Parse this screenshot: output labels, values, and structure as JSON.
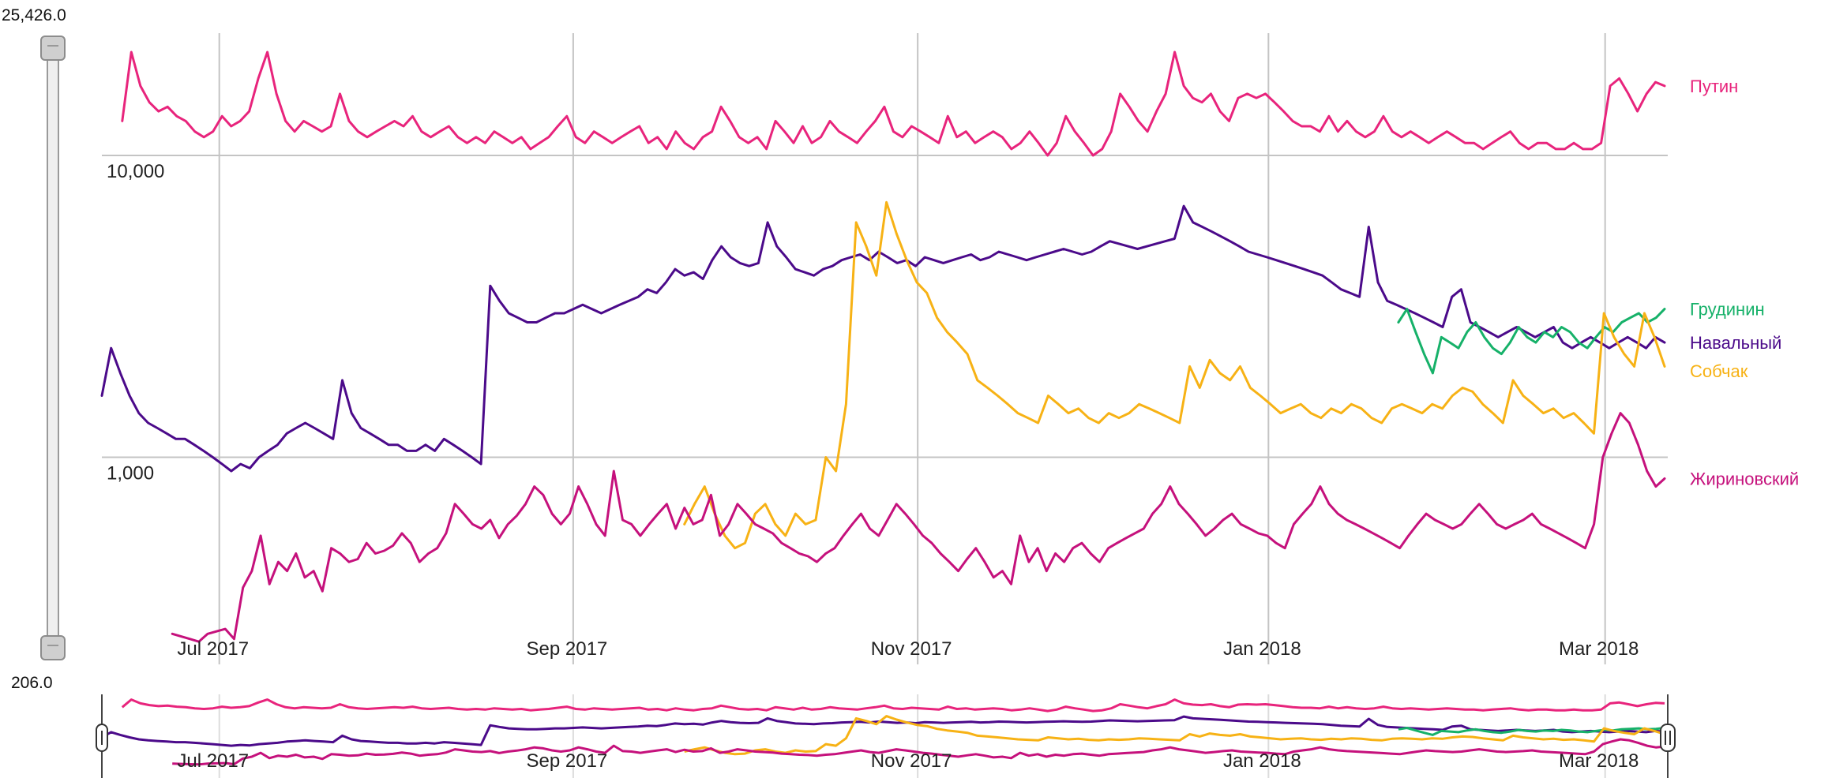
{
  "chart_data": {
    "type": "line",
    "title": "",
    "xlabel": "",
    "ylabel": "",
    "y_scale": "log",
    "ylim": [
      206,
      25426
    ],
    "grid": true,
    "x_ticks": [
      {
        "label": "Jul 2017",
        "t": 0.075
      },
      {
        "label": "Sep 2017",
        "t": 0.301
      },
      {
        "label": "Nov 2017",
        "t": 0.521
      },
      {
        "label": "Jan 2018",
        "t": 0.745
      },
      {
        "label": "Mar 2018",
        "t": 0.96
      }
    ],
    "y_ticks": [
      {
        "label": "10,000",
        "value": 10000
      },
      {
        "label": "1,000",
        "value": 1000
      }
    ],
    "range_selector": {
      "max_label": "25,426.0",
      "min_label": "206.0",
      "max_value": 25426,
      "min_value": 206
    },
    "legend_position": "right",
    "series": [
      {
        "name": "Путин",
        "color": "#e8247c",
        "t_start": 0.013,
        "t_end": 0.998,
        "values": [
          13000,
          22000,
          17000,
          15000,
          14000,
          14500,
          13500,
          13000,
          12000,
          11500,
          12000,
          13500,
          12500,
          13000,
          14000,
          18000,
          22000,
          16000,
          13000,
          12000,
          13000,
          12500,
          12000,
          12500,
          16000,
          13000,
          12000,
          11500,
          12000,
          12500,
          13000,
          12500,
          13500,
          12000,
          11500,
          12000,
          12500,
          11500,
          11000,
          11500,
          11000,
          12000,
          11500,
          11000,
          11500,
          10500,
          11000,
          11500,
          12500,
          13500,
          11500,
          11000,
          12000,
          11500,
          11000,
          11500,
          12000,
          12500,
          11000,
          11500,
          10500,
          12000,
          11000,
          10500,
          11500,
          12000,
          14500,
          13000,
          11500,
          11000,
          11500,
          10500,
          13000,
          12000,
          11000,
          12500,
          11000,
          11500,
          13000,
          12000,
          11500,
          11000,
          12000,
          13000,
          14500,
          12000,
          11500,
          12500,
          12000,
          11500,
          11000,
          13500,
          11500,
          12000,
          11000,
          11500,
          12000,
          11500,
          10500,
          11000,
          12000,
          11000,
          10000,
          11000,
          13500,
          12000,
          11000,
          10000,
          10500,
          12000,
          16000,
          14500,
          13000,
          12000,
          14000,
          16000,
          22000,
          17000,
          15500,
          15000,
          16000,
          14000,
          13000,
          15500,
          16000,
          15500,
          16000,
          15000,
          14000,
          13000,
          12500,
          12500,
          12000,
          13500,
          12000,
          13000,
          12000,
          11500,
          12000,
          13500,
          12000,
          11500,
          12000,
          11500,
          11000,
          11500,
          12000,
          11500,
          11000,
          11000,
          10500,
          11000,
          11500,
          12000,
          11000,
          10500,
          11000,
          11000,
          10500,
          10500,
          11000,
          10500,
          10500,
          11000,
          17000,
          18000,
          16000,
          14000,
          16000,
          17500,
          17000
        ]
      },
      {
        "name": "Навальный",
        "color": "#4b0a8a",
        "t_start": 0.0,
        "t_end": 0.998,
        "values": [
          1600,
          2300,
          1900,
          1600,
          1400,
          1300,
          1250,
          1200,
          1150,
          1150,
          1100,
          1050,
          1000,
          950,
          900,
          950,
          920,
          1000,
          1050,
          1100,
          1200,
          1250,
          1300,
          1250,
          1200,
          1150,
          1800,
          1400,
          1250,
          1200,
          1150,
          1100,
          1100,
          1050,
          1050,
          1100,
          1050,
          1150,
          1100,
          1050,
          1000,
          950,
          3700,
          3300,
          3000,
          2900,
          2800,
          2800,
          2900,
          3000,
          3000,
          3100,
          3200,
          3100,
          3000,
          3100,
          3200,
          3300,
          3400,
          3600,
          3500,
          3800,
          4200,
          4000,
          4100,
          3900,
          4500,
          5000,
          4600,
          4400,
          4300,
          4400,
          6000,
          5000,
          4600,
          4200,
          4100,
          4000,
          4200,
          4300,
          4500,
          4600,
          4700,
          4500,
          4800,
          4600,
          4400,
          4500,
          4300,
          4600,
          4500,
          4400,
          4500,
          4600,
          4700,
          4500,
          4600,
          4800,
          4700,
          4600,
          4500,
          4600,
          4700,
          4800,
          4900,
          4800,
          4700,
          4800,
          5000,
          5200,
          5100,
          5000,
          4900,
          5000,
          5100,
          5200,
          5300,
          6800,
          6000,
          5800,
          5600,
          5400,
          5200,
          5000,
          4800,
          4700,
          4600,
          4500,
          4400,
          4300,
          4200,
          4100,
          4000,
          3800,
          3600,
          3500,
          3400,
          5800,
          3800,
          3300,
          3200,
          3100,
          3000,
          2900,
          2800,
          2700,
          3400,
          3600,
          2800,
          2700,
          2600,
          2500,
          2600,
          2700,
          2600,
          2500,
          2600,
          2700,
          2400,
          2300,
          2400,
          2500,
          2400,
          2300,
          2400,
          2500,
          2400,
          2300,
          2500,
          2400
        ]
      },
      {
        "name": "Грудинин",
        "color": "#16b169",
        "t_start": 0.828,
        "t_end": 0.998,
        "values": [
          2800,
          3100,
          2600,
          2200,
          1900,
          2500,
          2400,
          2300,
          2600,
          2800,
          2500,
          2300,
          2200,
          2400,
          2700,
          2500,
          2400,
          2600,
          2500,
          2700,
          2600,
          2400,
          2300,
          2500,
          2700,
          2600,
          2800,
          2900,
          3000,
          2800,
          2900,
          3100
        ]
      },
      {
        "name": "Собчак",
        "color": "#f7b215",
        "t_start": 0.372,
        "t_end": 0.998,
        "values": [
          600,
          700,
          800,
          650,
          550,
          500,
          520,
          650,
          700,
          600,
          550,
          650,
          600,
          620,
          1000,
          900,
          1500,
          6000,
          5000,
          4000,
          7000,
          5500,
          4500,
          3800,
          3500,
          2900,
          2600,
          2400,
          2200,
          1800,
          1700,
          1600,
          1500,
          1400,
          1350,
          1300,
          1600,
          1500,
          1400,
          1450,
          1350,
          1300,
          1400,
          1350,
          1400,
          1500,
          1450,
          1400,
          1350,
          1300,
          2000,
          1700,
          2100,
          1900,
          1800,
          2000,
          1700,
          1600,
          1500,
          1400,
          1450,
          1500,
          1400,
          1350,
          1450,
          1400,
          1500,
          1450,
          1350,
          1300,
          1450,
          1500,
          1450,
          1400,
          1500,
          1450,
          1600,
          1700,
          1650,
          1500,
          1400,
          1300,
          1800,
          1600,
          1500,
          1400,
          1450,
          1350,
          1400,
          1300,
          1200,
          3000,
          2500,
          2200,
          2000,
          3000,
          2500,
          2000
        ]
      },
      {
        "name": "Жириновский",
        "color": "#c5117c",
        "t_start": 0.045,
        "t_end": 0.998,
        "values": [
          260,
          255,
          250,
          245,
          260,
          265,
          270,
          250,
          370,
          420,
          550,
          380,
          450,
          420,
          480,
          400,
          420,
          360,
          500,
          480,
          450,
          460,
          520,
          480,
          490,
          510,
          560,
          520,
          450,
          480,
          500,
          560,
          700,
          650,
          600,
          580,
          620,
          540,
          600,
          640,
          700,
          800,
          750,
          650,
          600,
          650,
          800,
          700,
          600,
          550,
          900,
          620,
          600,
          550,
          600,
          650,
          700,
          580,
          680,
          600,
          620,
          750,
          550,
          600,
          700,
          650,
          600,
          580,
          560,
          520,
          500,
          480,
          470,
          450,
          480,
          500,
          550,
          600,
          650,
          580,
          550,
          620,
          700,
          650,
          600,
          550,
          520,
          480,
          450,
          420,
          460,
          500,
          450,
          400,
          420,
          380,
          550,
          450,
          500,
          420,
          480,
          450,
          500,
          520,
          480,
          450,
          500,
          520,
          540,
          560,
          580,
          650,
          700,
          800,
          700,
          650,
          600,
          550,
          580,
          620,
          650,
          600,
          580,
          560,
          550,
          520,
          500,
          600,
          650,
          700,
          800,
          700,
          650,
          620,
          600,
          580,
          560,
          540,
          520,
          500,
          550,
          600,
          650,
          620,
          600,
          580,
          600,
          650,
          700,
          650,
          600,
          580,
          600,
          620,
          650,
          600,
          580,
          560,
          540,
          520,
          500,
          600,
          1000,
          1200,
          1400,
          1300,
          1100,
          900,
          800,
          850
        ]
      }
    ]
  }
}
